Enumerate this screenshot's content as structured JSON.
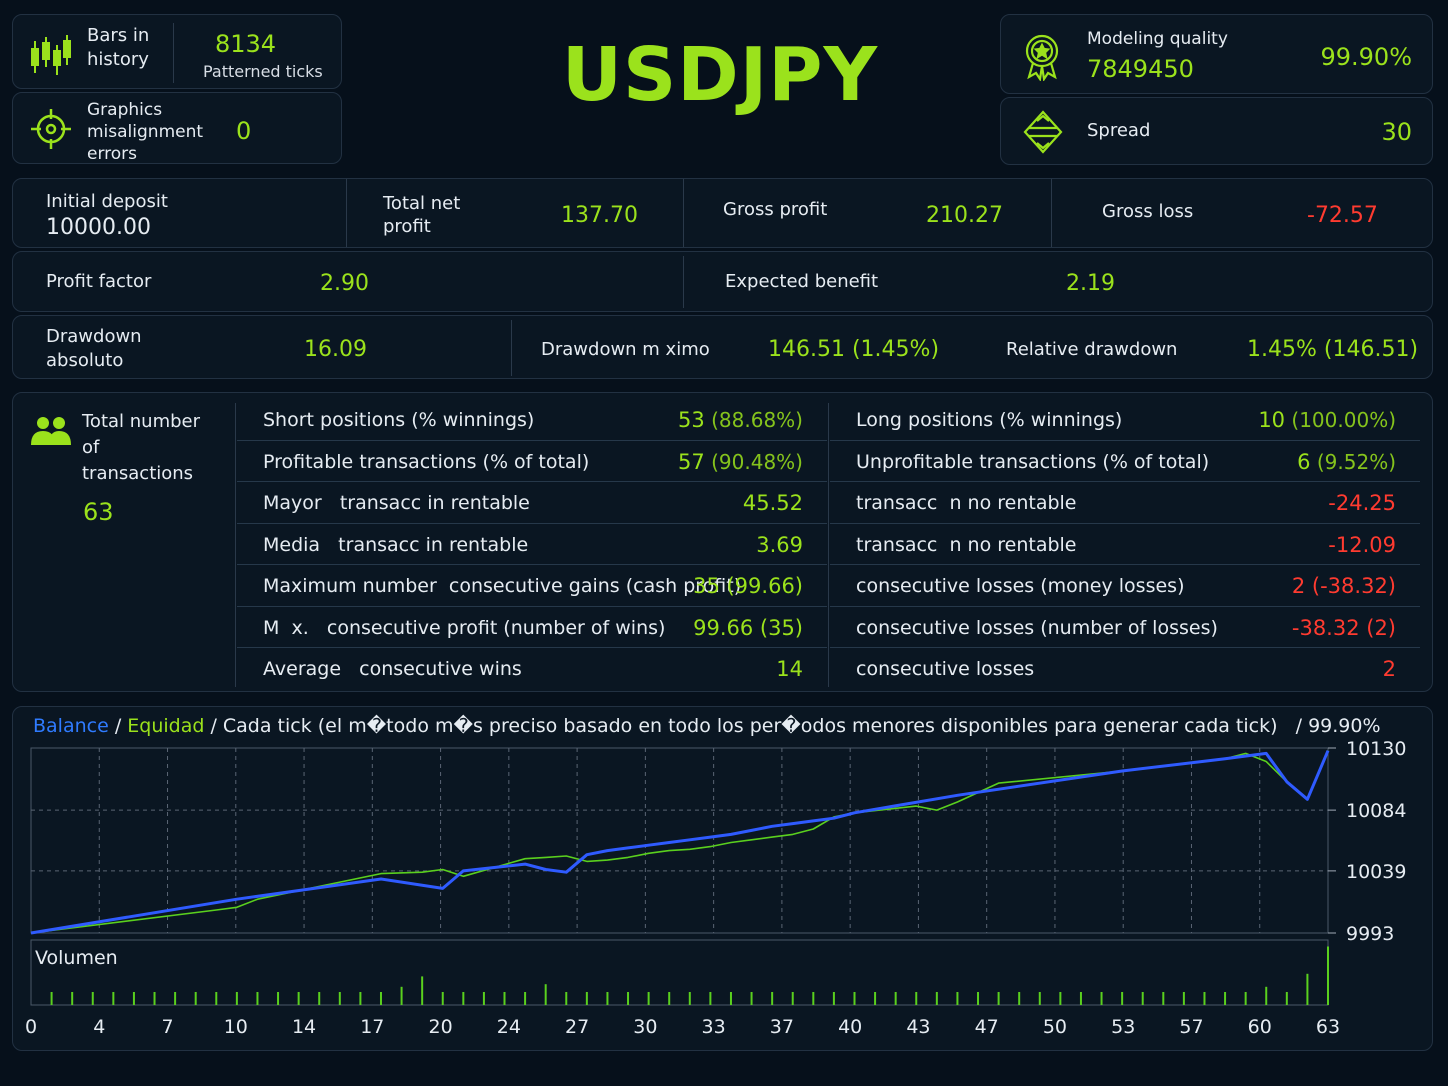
{
  "symbol": "USDJPY",
  "bars": {
    "label": "Bars in\nhistory",
    "value": "8134",
    "sub": "Patterned ticks"
  },
  "graphics": {
    "label": "Graphics\nmisalignment\nerrors",
    "value": "0"
  },
  "modeling": {
    "label": "Modeling quality",
    "ticks": "7849450",
    "value": "99.90%"
  },
  "spread": {
    "label": "Spread",
    "value": "30"
  },
  "summary": {
    "initial_deposit_label": "Initial deposit",
    "initial_deposit": "10000.00",
    "total_net_label": "Total net\nprofit",
    "total_net": "137.70",
    "gross_profit_label": "Gross profit",
    "gross_profit": "210.27",
    "gross_loss_label": "Gross loss",
    "gross_loss": "-72.57",
    "profit_factor_label": "Profit factor",
    "profit_factor": "2.90",
    "expected_label": "Expected benefit",
    "expected": "2.19",
    "dd_abs_label": "Drawdown\nabsoluto",
    "dd_abs": "16.09",
    "dd_max_label": "Drawdown m ximo",
    "dd_max": "146.51 (1.45%)",
    "rel_dd_label": "Relative drawdown",
    "rel_dd": "1.45% (146.51)"
  },
  "transactions": {
    "label": "Total number\nof\ntransactions",
    "value": "63",
    "left_rows": [
      {
        "k": "Short positions (% winnings)",
        "v": "53",
        "v2": " (88.68%)"
      },
      {
        "k": "Profitable transactions (% of total)",
        "v": "57",
        "v2": " (90.48%)"
      },
      {
        "k": "Mayor   transacc in rentable",
        "v": "45.52",
        "v2": ""
      },
      {
        "k": "Media   transacc in rentable",
        "v": "3.69",
        "v2": ""
      },
      {
        "k": "Maximum number  consecutive gains (cash profit)",
        "v": "35 (99.66)",
        "v2": ""
      },
      {
        "k": "M  x.   consecutive profit (number of wins)",
        "v": "99.66 (35)",
        "v2": ""
      },
      {
        "k": "Average   consecutive wins",
        "v": "14",
        "v2": ""
      }
    ],
    "right_rows": [
      {
        "k": "Long positions (% winnings)",
        "v": "10",
        "v2": " (100.00%)",
        "neg": false
      },
      {
        "k": "Unprofitable transactions (% of total)",
        "v": "6",
        "v2": " (9.52%)",
        "neg": false
      },
      {
        "k": "transacc  n no rentable",
        "v": "-24.25",
        "v2": "",
        "neg": true
      },
      {
        "k": "transacc  n no rentable",
        "v": "-12.09",
        "v2": "",
        "neg": true
      },
      {
        "k": "consecutive losses (money losses)",
        "v": "2 (-38.32)",
        "v2": "",
        "neg": true
      },
      {
        "k": "consecutive losses (number of losses)",
        "v": "-38.32 (2)",
        "v2": "",
        "neg": true
      },
      {
        "k": "consecutive losses",
        "v": "2",
        "v2": "",
        "neg": true
      }
    ]
  },
  "chart_legend": {
    "balance": "Balance",
    "sep1": " / ",
    "equity": "Equidad",
    "rest": " / Cada tick (el m�todo m�s preciso basado en todo los per�odos menores disponibles para generar cada tick)   / 99.90%"
  },
  "volume_label": "Volumen",
  "colors": {
    "accent": "#9be21c",
    "negative": "#ff3b30",
    "balance": "#2f5bff",
    "equity": "#5ad01e"
  },
  "chart_data": {
    "type": "line",
    "y_ticks": [
      "10130",
      "10084",
      "10039",
      "9993"
    ],
    "ylim": [
      9993,
      10130
    ],
    "x_ticks": [
      "0",
      "4",
      "7",
      "10",
      "14",
      "17",
      "20",
      "24",
      "27",
      "30",
      "33",
      "37",
      "40",
      "43",
      "47",
      "50",
      "53",
      "57",
      "60",
      "63"
    ],
    "xlim": [
      0,
      63
    ],
    "grid": true,
    "series": [
      {
        "name": "Balance",
        "x": [
          0,
          10,
          17,
          20,
          21,
          24,
          25,
          26,
          27,
          28,
          29,
          30,
          31,
          32,
          33,
          34,
          35,
          36,
          37,
          38,
          39,
          40,
          45,
          53,
          58,
          60,
          61,
          62,
          63
        ],
        "y": [
          9993,
          10018,
          10033,
          10026,
          10039,
          10044,
          10040,
          10038,
          10051,
          10054,
          10056,
          10058,
          10060,
          10062,
          10064,
          10066,
          10069,
          10072,
          10074,
          10076,
          10078,
          10082,
          10095,
          10113,
          10122,
          10126,
          10105,
          10092,
          10128
        ]
      },
      {
        "name": "Equidad",
        "x": [
          0,
          9,
          10,
          11,
          17,
          19,
          20,
          21,
          24,
          25,
          26,
          27,
          28,
          29,
          30,
          31,
          32,
          33,
          34,
          35,
          36,
          37,
          38,
          39,
          40,
          43,
          44,
          45,
          47,
          53,
          58,
          59,
          60,
          61,
          62,
          63
        ],
        "y": [
          9993,
          10010,
          10012,
          10018,
          10037,
          10038,
          10040,
          10035,
          10048,
          10049,
          10050,
          10046,
          10047,
          10049,
          10052,
          10054,
          10055,
          10057,
          10060,
          10062,
          10064,
          10066,
          10070,
          10079,
          10082,
          10087,
          10084,
          10090,
          10104,
          10113,
          10122,
          10126,
          10120,
          10105,
          10092,
          10128
        ]
      }
    ],
    "volume": {
      "x": [
        1,
        2,
        3,
        4,
        5,
        6,
        7,
        8,
        9,
        10,
        11,
        12,
        13,
        14,
        15,
        16,
        17,
        18,
        19,
        20,
        21,
        22,
        23,
        24,
        25,
        26,
        27,
        28,
        29,
        30,
        31,
        32,
        33,
        34,
        35,
        36,
        37,
        38,
        39,
        40,
        41,
        42,
        43,
        44,
        45,
        46,
        47,
        48,
        49,
        50,
        51,
        52,
        53,
        54,
        55,
        56,
        57,
        58,
        59,
        60,
        61,
        62,
        63
      ],
      "y": [
        1,
        1,
        1,
        1,
        1,
        1,
        1,
        1,
        1,
        1,
        1,
        1,
        1,
        1,
        1,
        1,
        1,
        1.4,
        2.2,
        1,
        1,
        1,
        1,
        1,
        1.6,
        1,
        1,
        1,
        1,
        1,
        1,
        1,
        1,
        1,
        1,
        1,
        1,
        1,
        1,
        1,
        1,
        1,
        1,
        1,
        1,
        1,
        1,
        1,
        1,
        1,
        1,
        1,
        1,
        1,
        1,
        1,
        1,
        1,
        1,
        1.4,
        1,
        2.4,
        4.5
      ]
    }
  }
}
